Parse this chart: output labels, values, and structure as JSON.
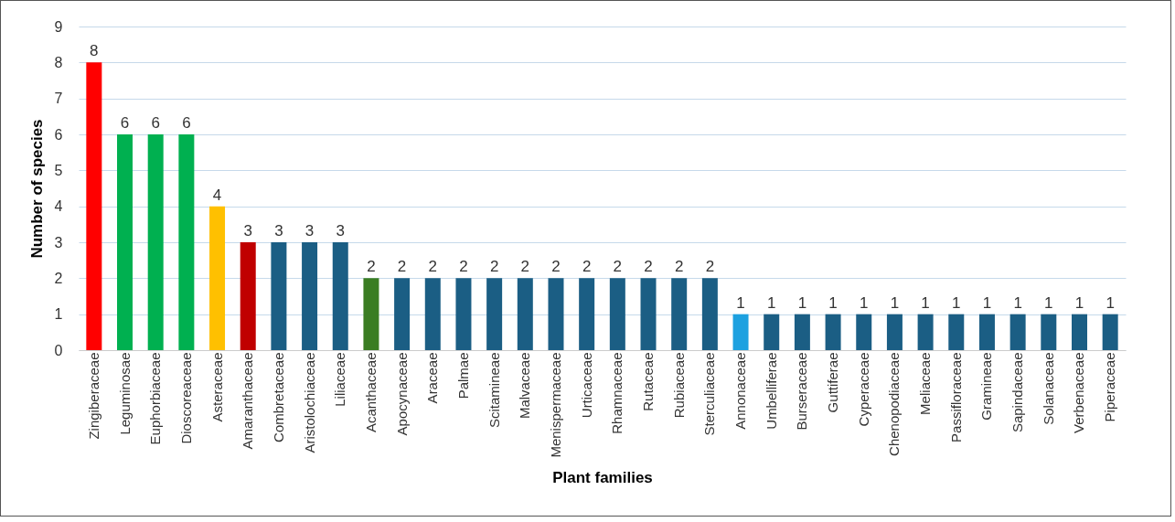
{
  "chart_data": {
    "type": "bar",
    "xlabel": "Plant families",
    "ylabel": "Number of species",
    "categories": [
      "Zingiberaceae",
      "Leguminosae",
      "Euphorbiaceae",
      "Dioscoreaceae",
      "Asteraceae",
      "Amaranthaceae",
      "Combretaceae",
      "Aristolochiaceae",
      "Liliaceae",
      "Acanthaceae",
      "Apocynaceae",
      "Araceae",
      "Palmae",
      "Scitamineae",
      "Malvaceae",
      "Menispermaceae",
      "Urticaceae",
      "Rhamnaceae",
      "Rutaceae",
      "Rubiaceae",
      "Sterculiaceae",
      "Annonaceae",
      "Umbelliferae",
      "Burseraceae",
      "Guttiferae",
      "Cyperaceae",
      "Chenopodiaceae",
      "Meliaceae",
      "Passifloraceae",
      "Gramineae",
      "Sapindaceae",
      "Solanaceae",
      "Verbenaceae",
      "Piperaceae"
    ],
    "values": [
      8,
      6,
      6,
      6,
      4,
      3,
      3,
      3,
      3,
      2,
      2,
      2,
      2,
      2,
      2,
      2,
      2,
      2,
      2,
      2,
      2,
      1,
      1,
      1,
      1,
      1,
      1,
      1,
      1,
      1,
      1,
      1,
      1,
      1
    ],
    "colors": [
      "#ff0000",
      "#00b050",
      "#00b050",
      "#00b050",
      "#ffc000",
      "#c00000",
      "#1b5e84",
      "#1b5e84",
      "#1b5e84",
      "#3a7d22",
      "#1b5e84",
      "#1b5e84",
      "#1b5e84",
      "#1b5e84",
      "#1b5e84",
      "#1b5e84",
      "#1b5e84",
      "#1b5e84",
      "#1b5e84",
      "#1b5e84",
      "#1b5e84",
      "#1da1e0",
      "#1b5e84",
      "#1b5e84",
      "#1b5e84",
      "#1b5e84",
      "#1b5e84",
      "#1b5e84",
      "#1b5e84",
      "#1b5e84",
      "#1b5e84",
      "#1b5e84",
      "#1b5e84",
      "#1b5e84"
    ],
    "ylim": [
      0,
      9
    ],
    "yticks": [
      0,
      1,
      2,
      3,
      4,
      5,
      6,
      7,
      8,
      9
    ],
    "grid": "y",
    "data_labels": true
  }
}
